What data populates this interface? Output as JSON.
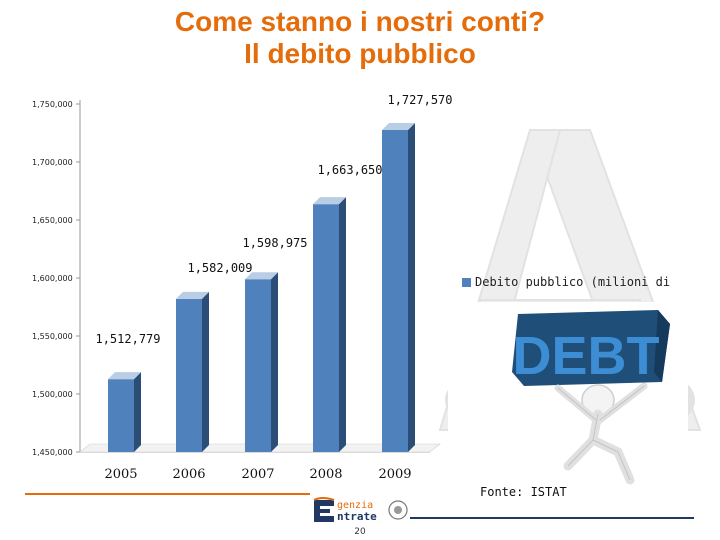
{
  "slide": {
    "title_line1": "Come stanno i nostri conti?",
    "title_line2": "Il debito pubblico",
    "source": "Fonte: ISTAT",
    "page_number": "20",
    "logo_text_line1": "genzia",
    "logo_text_line2": "ntrate",
    "debt_word": "DEBT"
  },
  "colors": {
    "title": "#e46c0a",
    "bar_front": "#4f81bd",
    "bar_side": "#2c4d75",
    "bar_top": "#b9cde5"
  },
  "chart_data": {
    "type": "bar",
    "categories": [
      "2005",
      "2006",
      "2007",
      "2008",
      "2009"
    ],
    "series": [
      {
        "name": "Debito pubblico (milioni di €)",
        "values": [
          1512779,
          1582009,
          1598975,
          1663650,
          1727570
        ],
        "data_labels": [
          "1,512,779",
          "1,582,009",
          "1,598,975",
          "1,663,650",
          "1,727,570"
        ]
      }
    ],
    "ylim": [
      1450000,
      1750000
    ],
    "yticks": [
      1450000,
      1500000,
      1550000,
      1600000,
      1650000,
      1700000,
      1750000
    ],
    "ytick_labels": [
      "1,450,000",
      "1,500,000",
      "1,550,000",
      "1,600,000",
      "1,650,000",
      "1,700,000",
      "1,750,000"
    ],
    "legend_text": "Debito pubblico (milioni di",
    "legend_position": "right",
    "grid": false,
    "style": "3d-column"
  }
}
